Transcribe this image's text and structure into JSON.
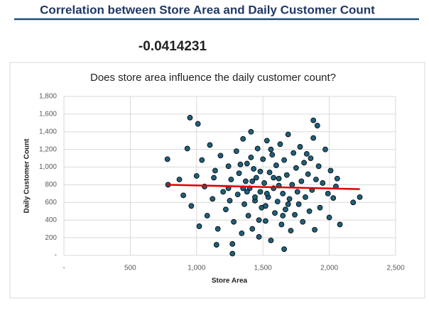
{
  "header": {
    "title": "Correlation between Store Area and Daily Customer Count"
  },
  "correlation": -0.0414231,
  "chart_data": {
    "type": "scatter",
    "title": "Does store area influence the daily customer count?",
    "x_label": "Store Area",
    "y_label": "Daily Customer Count",
    "xlim": [
      0,
      2500
    ],
    "ylim": [
      0,
      1800
    ],
    "xticks": [
      {
        "value": 0,
        "label": "-"
      },
      500,
      {
        "value": 1000,
        "label": "1,000"
      },
      {
        "value": 1500,
        "label": "1,500"
      },
      {
        "value": 2000,
        "label": "2,000"
      },
      {
        "value": 2500,
        "label": "2,500"
      }
    ],
    "yticks": [
      {
        "value": 0,
        "label": "-"
      },
      200,
      400,
      600,
      800,
      {
        "value": 1000,
        "label": "1,000"
      },
      {
        "value": 1200,
        "label": "1,200"
      },
      {
        "value": 1400,
        "label": "1,400"
      },
      {
        "value": 1600,
        "label": "1,600"
      },
      {
        "value": 1800,
        "label": "1,800"
      }
    ],
    "grid": true,
    "color": "#1f5f7a",
    "x": [
      780,
      785,
      950,
      1010,
      1270,
      1660,
      1880,
      1910,
      2180,
      2230,
      1150,
      1270,
      1880,
      1830,
      870,
      900,
      930,
      960,
      1000,
      1020,
      1040,
      1060,
      1080,
      1100,
      1120,
      1140,
      1160,
      1180,
      1200,
      1220,
      1240,
      1260,
      1280,
      1300,
      1310,
      1320,
      1340,
      1350,
      1360,
      1370,
      1380,
      1390,
      1400,
      1410,
      1420,
      1430,
      1440,
      1450,
      1460,
      1470,
      1480,
      1490,
      1500,
      1510,
      1520,
      1530,
      1540,
      1550,
      1560,
      1570,
      1580,
      1590,
      1600,
      1610,
      1620,
      1630,
      1640,
      1650,
      1660,
      1670,
      1680,
      1690,
      1700,
      1710,
      1720,
      1730,
      1740,
      1750,
      1760,
      1770,
      1780,
      1790,
      1800,
      1810,
      1820,
      1840,
      1850,
      1860,
      1870,
      1890,
      1900,
      1920,
      1930,
      1950,
      1970,
      1990,
      2000,
      2010,
      2030,
      2050,
      2080,
      2060,
      1350,
      1420,
      1480,
      1530,
      1580,
      1440,
      1380,
      1620,
      1250,
      1690,
      1130,
      1560,
      1410,
      1330,
      1470,
      1650,
      1240,
      1520
    ],
    "values": [
      1090,
      800,
      1560,
      1490,
      20,
      70,
      1530,
      1470,
      600,
      660,
      120,
      130,
      1330,
      1150,
      860,
      680,
      1210,
      560,
      900,
      330,
      1080,
      780,
      450,
      1250,
      640,
      960,
      300,
      1130,
      720,
      520,
      1010,
      860,
      380,
      1180,
      690,
      930,
      250,
      1320,
      580,
      840,
      1040,
      450,
      760,
      1400,
      300,
      980,
      620,
      880,
      1210,
      210,
      720,
      540,
      1090,
      820,
      390,
      1300,
      660,
      940,
      170,
      1140,
      760,
      480,
      1020,
      610,
      870,
      1260,
      350,
      700,
      1080,
      520,
      910,
      1370,
      640,
      280,
      800,
      1160,
      460,
      990,
      720,
      580,
      1230,
      840,
      380,
      1050,
      660,
      920,
      500,
      1100,
      740,
      290,
      860,
      1010,
      540,
      820,
      1200,
      700,
      430,
      960,
      650,
      780,
      350,
      870,
      760,
      840,
      950,
      700,
      880,
      660,
      720,
      790,
      620,
      580,
      880,
      1200,
      1110,
      1030,
      400,
      450,
      760,
      560
    ],
    "trendline": {
      "color": "#e00000",
      "x": [
        775,
        2230
      ],
      "y": [
        800,
        750
      ]
    }
  }
}
